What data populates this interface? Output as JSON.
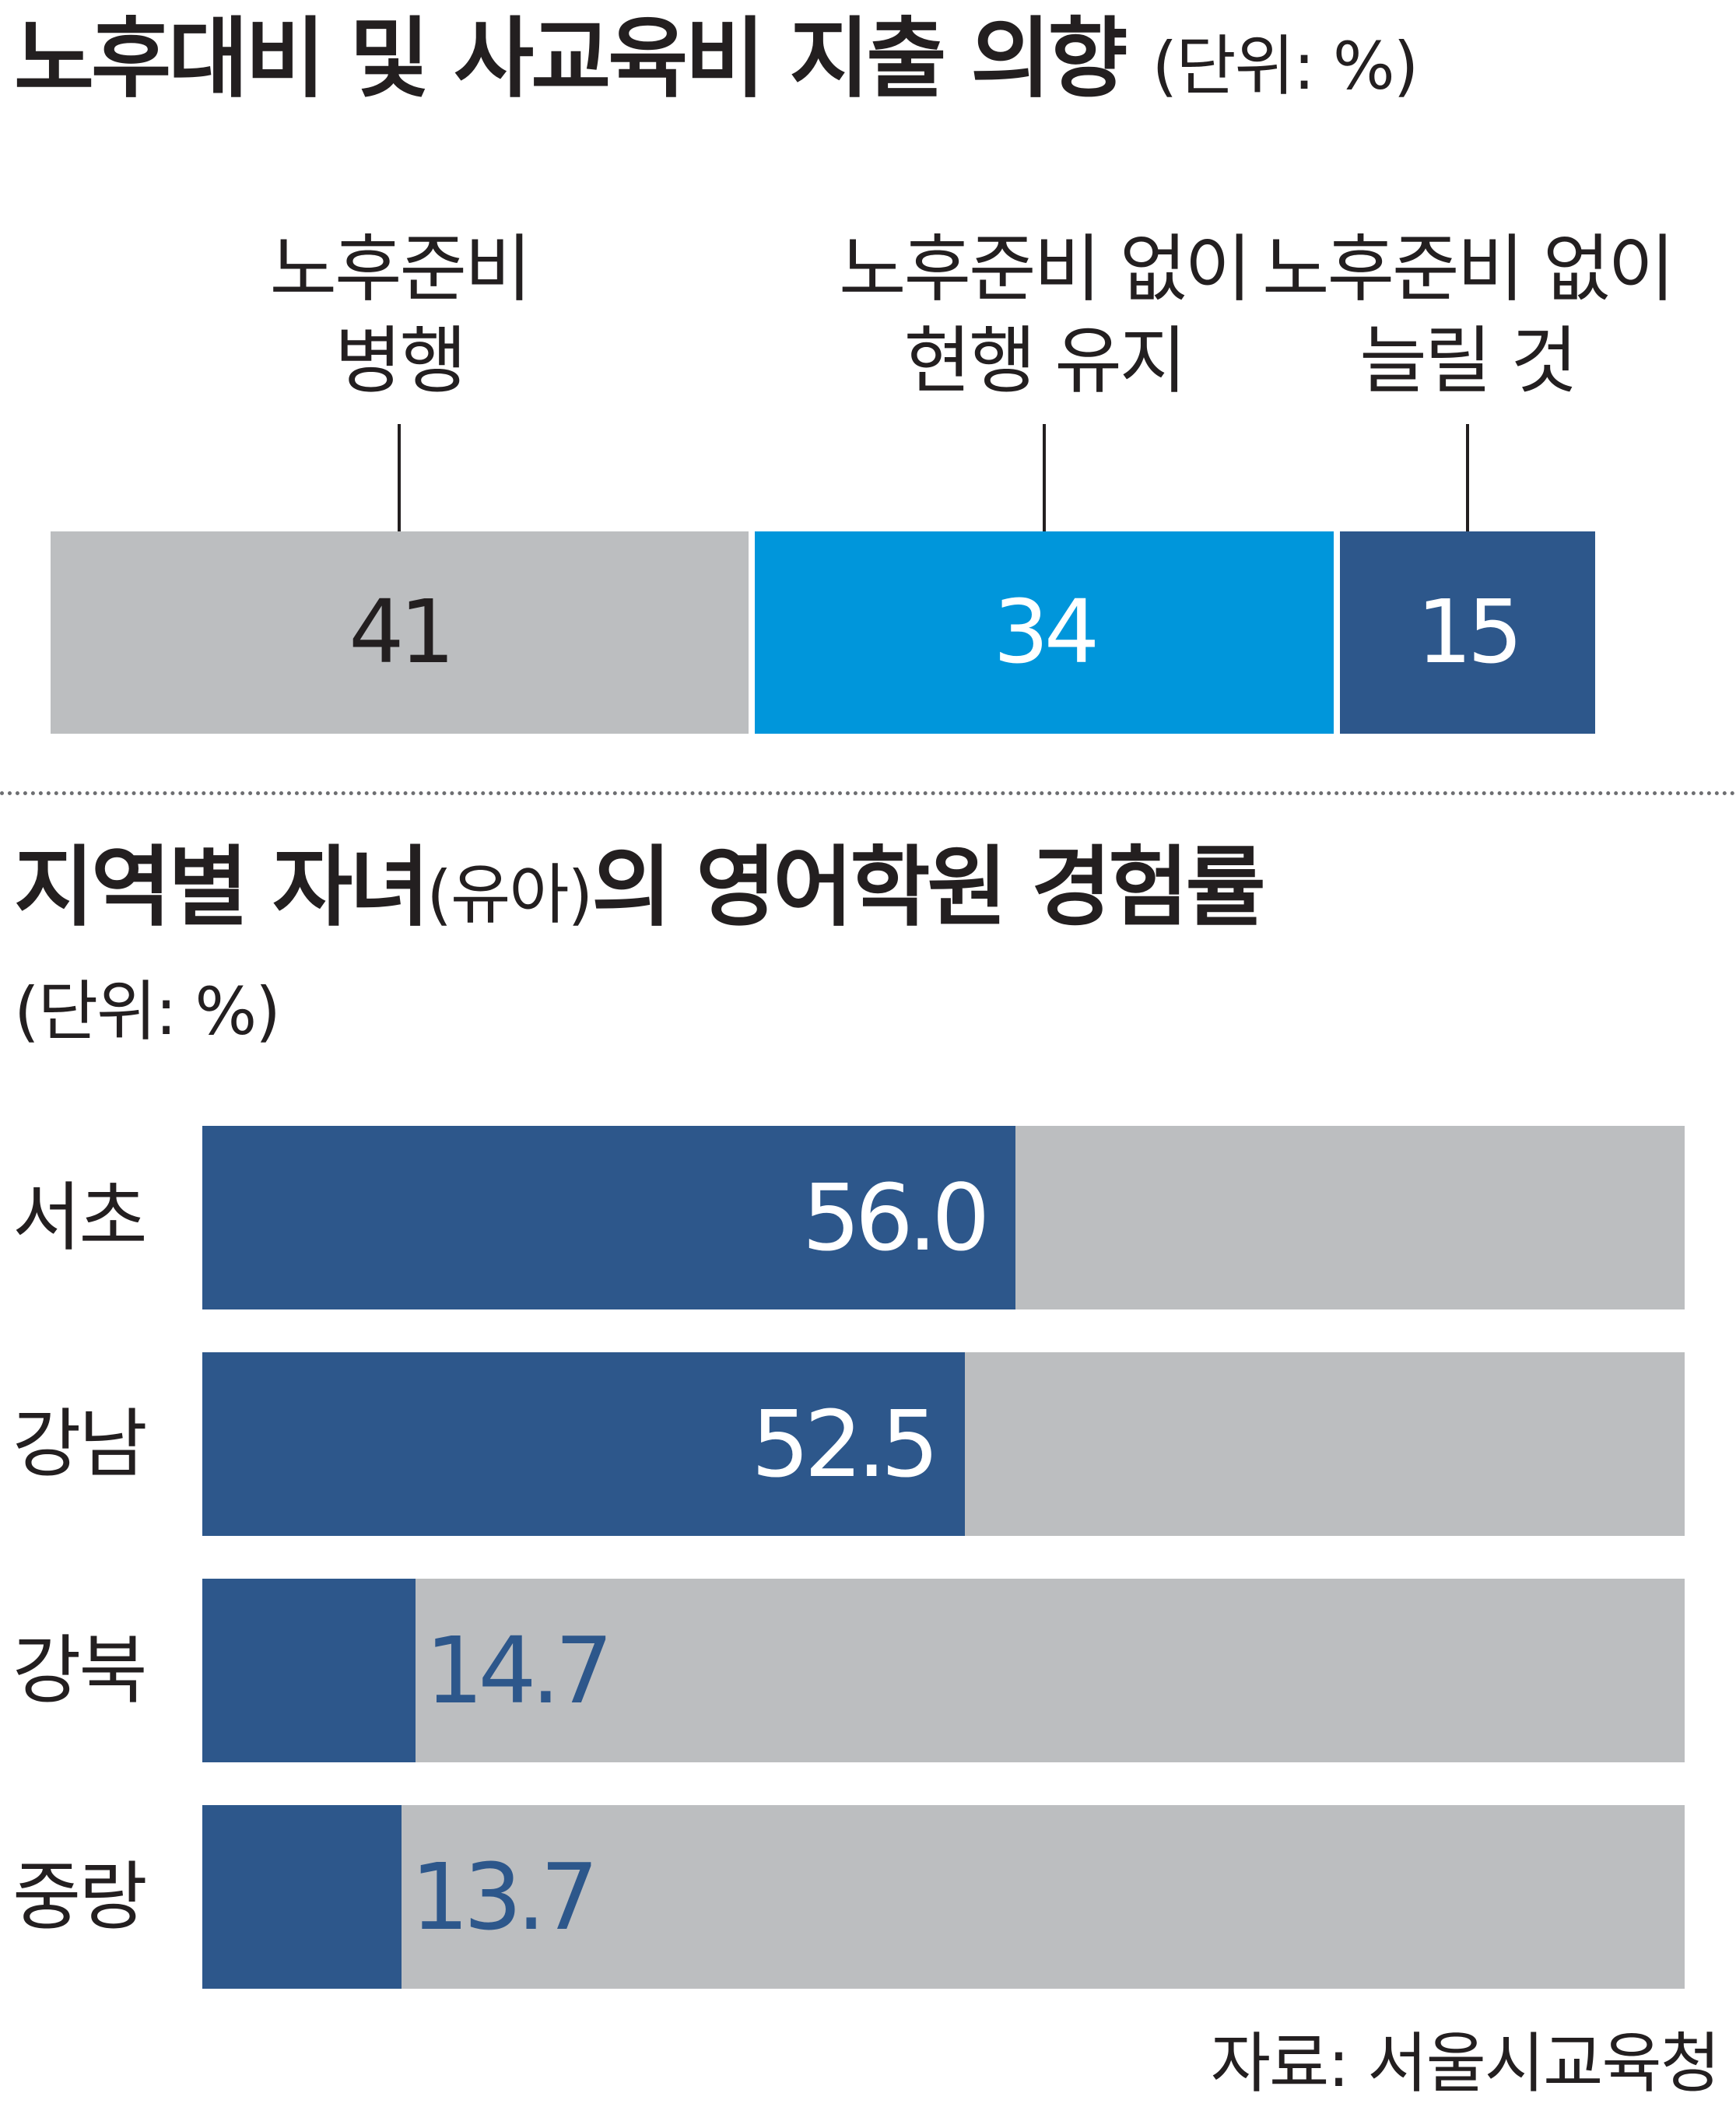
{
  "chart_data": [
    {
      "type": "bar",
      "stacked": true,
      "orientation": "horizontal",
      "title": "노후대비 및 사교육비 지출 의향",
      "unit": "(단위: %)",
      "categories": [
        {
          "label_line1": "노후준비",
          "label_line2": "병행",
          "value": 41,
          "color": "#bcbec0",
          "value_color": "#231f20"
        },
        {
          "label_line1": "노후준비 없이",
          "label_line2": "현행 유지",
          "value": 34,
          "color": "#0096db",
          "value_color": "#ffffff"
        },
        {
          "label_line1": "노후준비 없이",
          "label_line2": "늘릴 것",
          "value": 15,
          "color": "#2d578b",
          "value_color": "#ffffff"
        }
      ]
    },
    {
      "type": "bar",
      "orientation": "horizontal",
      "title_main": "지역별 자녀",
      "title_paren": "(유아)",
      "title_rest": "의 영어학원 경험률",
      "unit": "(단위: %)",
      "xlim": [
        0,
        100
      ],
      "categories": [
        "서초",
        "강남",
        "강북",
        "중랑"
      ],
      "values": [
        "56.0",
        "52.5",
        "14.7",
        "13.7"
      ],
      "value_label_inside": [
        true,
        true,
        false,
        false
      ],
      "bar_color": "#2d578b",
      "track_color": "#bcbec0"
    }
  ],
  "source": "자료: 서울시교육청"
}
